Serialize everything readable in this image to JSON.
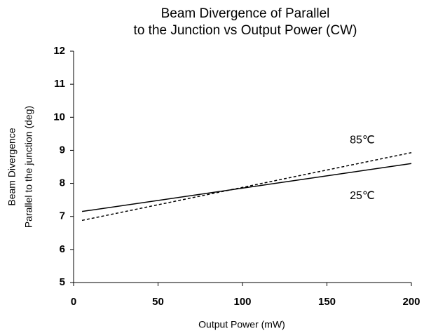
{
  "chart_data": {
    "type": "line",
    "title": [
      "Beam Divergence of Parallel",
      "to the Junction vs Output Power (CW)"
    ],
    "x_label": "Output Power (mW)",
    "y_label": [
      "Beam Divergence",
      "Parallel to the junction (deg)"
    ],
    "x": [
      5,
      200
    ],
    "series": [
      {
        "name": "85℃",
        "color": "#000000",
        "dash": true,
        "values": [
          6.88,
          8.93
        ]
      },
      {
        "name": "25℃",
        "color": "#000000",
        "dash": false,
        "values": [
          7.15,
          8.6
        ]
      }
    ],
    "xlim": [
      0,
      200
    ],
    "xticks": [
      0,
      50,
      100,
      150,
      200
    ],
    "ylim": [
      5,
      12
    ],
    "yticks": [
      5,
      6,
      7,
      8,
      9,
      10,
      11,
      12
    ],
    "grid": false
  }
}
